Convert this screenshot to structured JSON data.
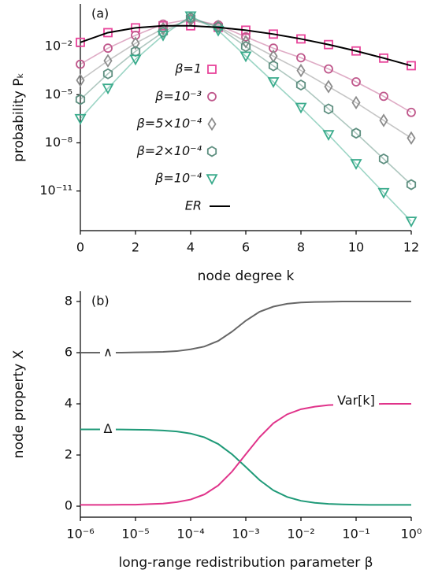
{
  "chart_data": [
    {
      "type": "line",
      "label": "(a)",
      "xlabel": "node degree k",
      "ylabel": "probability Pₖ",
      "x": [
        0,
        1,
        2,
        3,
        4,
        5,
        6,
        7,
        8,
        9,
        10,
        11,
        12
      ],
      "xlim": [
        0,
        12
      ],
      "xticks": [
        0,
        2,
        4,
        6,
        8,
        10,
        12
      ],
      "ylim": [
        3.4e-14,
        4.5
      ],
      "log_y": true,
      "yticks": [
        {
          "value": 0.01,
          "label": "10⁻²"
        },
        {
          "value": 1e-05,
          "label": "10⁻⁵"
        },
        {
          "value": 1e-08,
          "label": "10⁻⁸"
        },
        {
          "value": 1e-11,
          "label": "10⁻¹¹"
        }
      ],
      "legend": "center",
      "series": [
        {
          "name": "β=1",
          "color": "#e8449a",
          "marker": "square",
          "values": [
            0.0183,
            0.0733,
            0.1465,
            0.1954,
            0.1954,
            0.1563,
            0.1042,
            0.0595,
            0.0298,
            0.0132,
            0.0053,
            0.0019,
            0.00064
          ]
        },
        {
          "name": "β=10⁻³",
          "color": "#c0588c",
          "marker": "circle",
          "values": [
            0.00079,
            0.0079,
            0.05,
            0.25,
            0.5,
            0.22,
            0.04,
            0.0079,
            0.002,
            0.0004,
            6.3e-05,
            7.9e-06,
            7.9e-07
          ]
        },
        {
          "name": "β=5×10⁻⁴",
          "color": "#8c8c8c",
          "marker": "diamond",
          "values": [
            7.9e-05,
            0.0013,
            0.016,
            0.13,
            0.45,
            0.18,
            0.02,
            0.0025,
            0.00032,
            3.2e-05,
            3.2e-06,
            2.5e-07,
            2e-08
          ]
        },
        {
          "name": "β=2×10⁻⁴",
          "color": "#5e8f80",
          "marker": "hexagon",
          "values": [
            5e-06,
            0.0002,
            0.005,
            0.079,
            0.63,
            0.16,
            0.01,
            0.00063,
            4e-05,
            1.3e-06,
            4e-08,
            1e-09,
            2.5e-11
          ]
        },
        {
          "name": "β=10⁻⁴",
          "color": "#3aab8c",
          "marker": "triangle",
          "values": [
            3.2e-07,
            2.5e-05,
            0.0016,
            0.05,
            0.79,
            0.1,
            0.0025,
            6.3e-05,
            1.6e-06,
            3.2e-08,
            5e-10,
            7.9e-12,
            1.3e-13
          ]
        },
        {
          "name": "ER",
          "color": "#000000",
          "values": [
            0.0183,
            0.0733,
            0.1465,
            0.1954,
            0.1954,
            0.1563,
            0.1042,
            0.0595,
            0.0298,
            0.0132,
            0.0053,
            0.0019,
            0.00064
          ]
        }
      ]
    },
    {
      "type": "line",
      "label": "(b)",
      "xlabel": "long-range redistribution parameter β",
      "ylabel": "node property X",
      "x": [
        1e-06,
        1.78e-06,
        3.16e-06,
        5.62e-06,
        1e-05,
        1.78e-05,
        3.16e-05,
        5.62e-05,
        0.0001,
        0.000178,
        0.000316,
        0.000562,
        0.001,
        0.00178,
        0.00316,
        0.00562,
        0.01,
        0.0178,
        0.0316,
        0.0562,
        0.1,
        0.178,
        0.316,
        0.562,
        1
      ],
      "xlim": [
        1e-06,
        1
      ],
      "log_x": true,
      "xticks": [
        {
          "value": 1e-06,
          "label": "10⁻⁶"
        },
        {
          "value": 1e-05,
          "label": "10⁻⁵"
        },
        {
          "value": 0.0001,
          "label": "10⁻⁴"
        },
        {
          "value": 0.001,
          "label": "10⁻³"
        },
        {
          "value": 0.01,
          "label": "10⁻²"
        },
        {
          "value": 0.1,
          "label": "10⁻¹"
        },
        {
          "value": 1,
          "label": "10⁰"
        }
      ],
      "ylim": [
        -0.43,
        8.4
      ],
      "yticks": [
        0,
        2,
        4,
        6,
        8
      ],
      "series": [
        {
          "name": "∧",
          "color": "#666666",
          "values": [
            6.0,
            6.0,
            6.0,
            6.0,
            6.01,
            6.02,
            6.03,
            6.06,
            6.13,
            6.24,
            6.46,
            6.82,
            7.25,
            7.6,
            7.8,
            7.91,
            7.96,
            7.98,
            7.99,
            8.0,
            8.0,
            8.0,
            8.0,
            8.0,
            8.0
          ]
        },
        {
          "name": "Δ",
          "color": "#1f9a78",
          "values": [
            3.0,
            3.0,
            3.0,
            2.995,
            2.99,
            2.98,
            2.96,
            2.92,
            2.84,
            2.69,
            2.43,
            2.03,
            1.53,
            1.02,
            0.62,
            0.36,
            0.21,
            0.13,
            0.09,
            0.07,
            0.06,
            0.05,
            0.05,
            0.05,
            0.05
          ]
        },
        {
          "name": "Var[k]",
          "color": "#e0338a",
          "values": [
            0.05,
            0.05,
            0.05,
            0.06,
            0.06,
            0.08,
            0.1,
            0.16,
            0.26,
            0.46,
            0.81,
            1.35,
            2.03,
            2.7,
            3.24,
            3.59,
            3.79,
            3.89,
            3.95,
            3.97,
            3.99,
            3.99,
            4.0,
            4.0,
            4.0
          ]
        }
      ]
    }
  ]
}
